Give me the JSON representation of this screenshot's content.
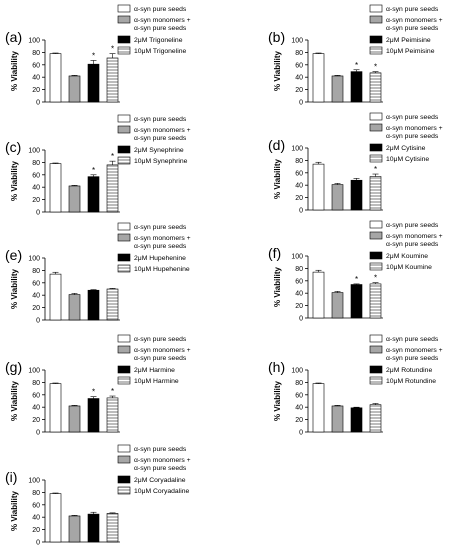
{
  "chart_data": [
    {
      "panel": "(a)",
      "type": "bar",
      "ylabel": "% Viability",
      "ylim": [
        0,
        100
      ],
      "yticks": [
        0,
        20,
        40,
        60,
        80,
        100
      ],
      "categories": [
        "α-syn pure seeds",
        "α-syn monomers + α-syn pure seeds",
        "2μM Trigoneline",
        "10μM Trigoneline"
      ],
      "values": [
        78,
        42,
        61,
        71
      ],
      "errors": [
        1,
        1,
        6,
        7
      ],
      "significant": [
        false,
        false,
        true,
        true
      ]
    },
    {
      "panel": "(b)",
      "type": "bar",
      "ylabel": "% Viability",
      "ylim": [
        0,
        100
      ],
      "yticks": [
        0,
        20,
        40,
        60,
        80,
        100
      ],
      "categories": [
        "α-syn pure seeds",
        "α-syn monomers + α-syn pure seeds",
        "2μM Peimisine",
        "10μM Peimisine"
      ],
      "values": [
        78,
        42,
        49,
        47
      ],
      "errors": [
        1,
        1,
        3,
        2
      ],
      "significant": [
        false,
        false,
        true,
        true
      ]
    },
    {
      "panel": "(c)",
      "type": "bar",
      "ylabel": "% Viability",
      "ylim": [
        0,
        100
      ],
      "yticks": [
        0,
        20,
        40,
        60,
        80,
        100
      ],
      "categories": [
        "α-syn pure seeds",
        "α-syn monomers + α-syn pure seeds",
        "2μM Synephrine",
        "10μM Synephrine"
      ],
      "values": [
        78,
        42,
        57,
        76
      ],
      "errors": [
        1,
        1,
        3,
        6
      ],
      "significant": [
        false,
        false,
        true,
        true
      ]
    },
    {
      "panel": "(d)",
      "type": "bar",
      "ylabel": "% Viability",
      "ylim": [
        0,
        100
      ],
      "yticks": [
        0,
        20,
        40,
        60,
        80,
        100
      ],
      "categories": [
        "α-syn pure seeds",
        "α-syn monomers + α-syn pure seeds",
        "2μM Cytisine",
        "10μM Cytisine"
      ],
      "values": [
        74,
        41,
        48,
        54
      ],
      "errors": [
        3,
        2,
        3,
        4
      ],
      "significant": [
        false,
        false,
        false,
        true
      ]
    },
    {
      "panel": "(e)",
      "type": "bar",
      "ylabel": "% Viability",
      "ylim": [
        0,
        100
      ],
      "yticks": [
        0,
        20,
        40,
        60,
        80,
        100
      ],
      "categories": [
        "α-syn pure seeds",
        "α-syn monomers + α-syn pure seeds",
        "2μM Hupehenine",
        "10μM Hupehenine"
      ],
      "values": [
        74,
        41,
        48,
        50
      ],
      "errors": [
        3,
        2,
        1,
        1
      ],
      "significant": [
        false,
        false,
        false,
        false
      ]
    },
    {
      "panel": "(f)",
      "type": "bar",
      "ylabel": "% Viability",
      "ylim": [
        0,
        100
      ],
      "yticks": [
        0,
        20,
        40,
        60,
        80,
        100
      ],
      "categories": [
        "α-syn pure seeds",
        "α-syn monomers + α-syn pure seeds",
        "2μM Koumine",
        "10μM Koumine"
      ],
      "values": [
        74,
        41,
        54,
        55
      ],
      "errors": [
        3,
        2,
        1,
        2
      ],
      "significant": [
        false,
        false,
        true,
        true
      ]
    },
    {
      "panel": "(g)",
      "type": "bar",
      "ylabel": "% Viability",
      "ylim": [
        0,
        100
      ],
      "yticks": [
        0,
        20,
        40,
        60,
        80,
        100
      ],
      "categories": [
        "α-syn pure seeds",
        "α-syn monomers + α-syn pure seeds",
        "2μM Harmine",
        "10μM Harmine"
      ],
      "values": [
        78,
        42,
        54,
        55
      ],
      "errors": [
        1,
        1,
        3,
        3
      ],
      "significant": [
        false,
        false,
        true,
        true
      ]
    },
    {
      "panel": "(h)",
      "type": "bar",
      "ylabel": "% Viability",
      "ylim": [
        0,
        100
      ],
      "yticks": [
        0,
        20,
        40,
        60,
        80,
        100
      ],
      "categories": [
        "α-syn pure seeds",
        "α-syn monomers + α-syn pure seeds",
        "2μM Rotundine",
        "10μM Rotundine"
      ],
      "values": [
        78,
        42,
        39,
        44
      ],
      "errors": [
        1,
        1,
        1,
        2
      ],
      "significant": [
        false,
        false,
        false,
        false
      ]
    },
    {
      "panel": "(i)",
      "type": "bar",
      "ylabel": "% Viability",
      "ylim": [
        0,
        100
      ],
      "yticks": [
        0,
        20,
        40,
        60,
        80,
        100
      ],
      "categories": [
        "α-syn pure seeds",
        "α-syn monomers + α-syn pure seeds",
        "2μM Coryadaline",
        "10μM Coryadaline"
      ],
      "values": [
        78,
        42,
        45,
        46
      ],
      "errors": [
        1,
        1,
        3,
        1
      ],
      "significant": [
        false,
        false,
        false,
        false
      ]
    }
  ],
  "significance_symbol": "*",
  "colors": {
    "bar_1": "#ffffff",
    "bar_2": "#a6a6a6",
    "bar_3": "#000000",
    "bar_4_stripe": "#555555",
    "outline": "#000000"
  }
}
